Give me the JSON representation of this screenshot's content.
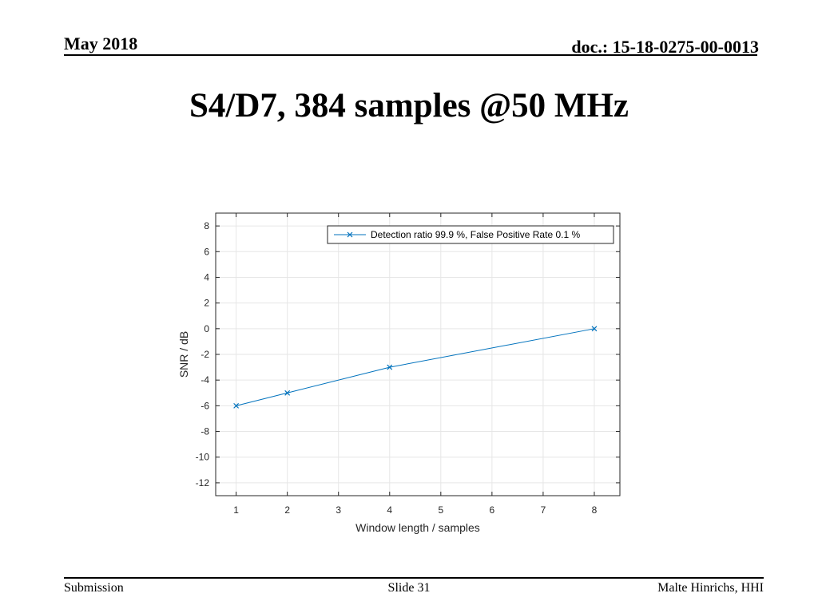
{
  "header": {
    "date": "May 2018",
    "doc_id": "doc.: 15-18-0275-00-0013"
  },
  "slide": {
    "title": "S4/D7, 384 samples @50 MHz"
  },
  "footer": {
    "left": "Submission",
    "center": "Slide 31",
    "right": "Malte Hinrichs, HHI"
  },
  "colors": {
    "series": "#0072BD",
    "grid": "#e6e6e6",
    "axis": "#262626"
  },
  "chart_data": {
    "type": "line",
    "title": "",
    "xlabel": "Window length / samples",
    "ylabel": "SNR / dB",
    "xlim": [
      0.6,
      8.5
    ],
    "ylim": [
      -13,
      9
    ],
    "xticks": [
      1,
      2,
      3,
      4,
      5,
      6,
      7,
      8
    ],
    "yticks": [
      8,
      6,
      4,
      2,
      0,
      -2,
      -4,
      -6,
      -8,
      -10,
      -12
    ],
    "grid": true,
    "legend_position": "top-right",
    "series": [
      {
        "name": "Detection ratio 99.9 %, False Positive Rate 0.1 %",
        "marker": "x",
        "x": [
          1,
          2,
          4,
          8
        ],
        "y": [
          -6,
          -5,
          -3,
          0
        ]
      }
    ]
  }
}
